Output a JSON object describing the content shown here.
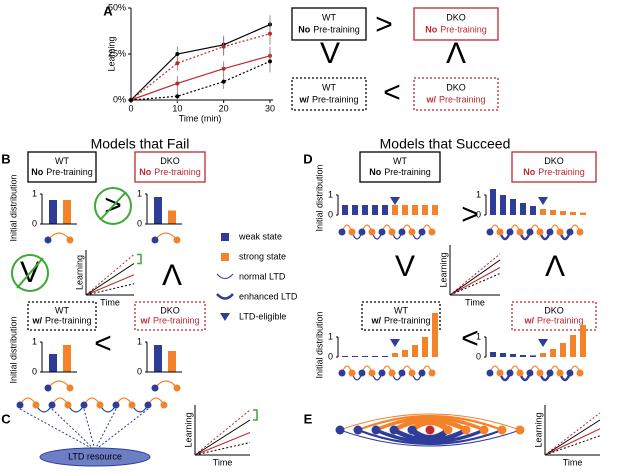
{
  "panel_labels": [
    "A",
    "B",
    "C",
    "D",
    "E"
  ],
  "titles": {
    "fail": "Models that Fail",
    "succeed": "Models that Succeed"
  },
  "chart_data": {
    "type": "line",
    "x": [
      0,
      10,
      20,
      30
    ],
    "xlabel": "Time (min)",
    "ylabel": "Learning",
    "xlim": [
      0,
      30
    ],
    "xticks": [
      0,
      10,
      20,
      30
    ],
    "ylim": [
      0,
      50
    ],
    "yticks": [
      {
        "value": 0,
        "label": "0%"
      },
      {
        "value": 25,
        "label": "25%"
      },
      {
        "value": 50,
        "label": "50%"
      }
    ],
    "series": [
      {
        "color": "#000000",
        "linestyle": "solid",
        "values": [
          0,
          25,
          30,
          41
        ],
        "errors": [
          0,
          4,
          5,
          5
        ]
      },
      {
        "color": "#c1272d",
        "linestyle": "dotted",
        "values": [
          0,
          20,
          29,
          36
        ],
        "errors": [
          0,
          4,
          5,
          6
        ]
      },
      {
        "color": "#c1272d",
        "linestyle": "solid",
        "values": [
          0,
          9,
          17,
          24
        ],
        "errors": [
          0,
          4,
          4,
          5
        ]
      },
      {
        "color": "#000000",
        "linestyle": "dotted",
        "values": [
          0,
          2,
          10,
          21
        ],
        "errors": [
          0,
          3,
          4,
          6
        ]
      }
    ]
  },
  "conditions": [
    {
      "genotype": "WT",
      "pre": "No",
      "training": "Pre-training",
      "color": "#000000",
      "border": "solid"
    },
    {
      "genotype": "DKO",
      "pre": "No",
      "training": "Pre-training",
      "color": "#c1272d",
      "border": "solid"
    },
    {
      "genotype": "WT",
      "pre": "w/",
      "training": "Pre-training",
      "color": "#000000",
      "border": "dotted"
    },
    {
      "genotype": "DKO",
      "pre": "w/",
      "training": "Pre-training",
      "color": "#c1272d",
      "border": "dotted"
    }
  ],
  "symbols": {
    "greater": ">",
    "less": "<",
    "down": "V",
    "up": "Λ"
  },
  "labels": {
    "initial_distribution": "Initial distribution",
    "learning": "Learning",
    "time": "Time",
    "ltd_resource": "LTD resource"
  },
  "dist_ticks": [
    0,
    1
  ],
  "legend": [
    {
      "label": "weak state",
      "color": "#2e3d98"
    },
    {
      "label": "strong state",
      "color": "#f4822a"
    },
    {
      "label": "normal LTD"
    },
    {
      "label": "enhanced LTD"
    },
    {
      "label": "LTD-eligible"
    }
  ],
  "b_bars": [
    [
      0.8,
      0.8
    ],
    [
      0.9,
      0.45
    ],
    [
      0.6,
      0.9
    ],
    [
      0.9,
      0.7
    ]
  ],
  "d_bars": [
    {
      "weak": [
        0.5,
        0.5,
        0.5,
        0.5,
        0.5
      ],
      "strong": [
        0.5,
        0.5,
        0.5,
        0.5,
        0.5
      ]
    },
    {
      "weak": [
        1.3,
        1.0,
        0.8,
        0.6,
        0.45
      ],
      "strong": [
        0.3,
        0.25,
        0.2,
        0.15,
        0.12
      ]
    },
    {
      "weak": [
        0.05,
        0.05,
        0.05,
        0.05,
        0.05
      ],
      "strong": [
        0.2,
        0.35,
        0.6,
        1.0,
        2.2
      ]
    },
    {
      "weak": [
        0.25,
        0.2,
        0.15,
        0.1,
        0.08
      ],
      "strong": [
        0.2,
        0.4,
        0.7,
        1.1,
        1.6
      ]
    }
  ]
}
